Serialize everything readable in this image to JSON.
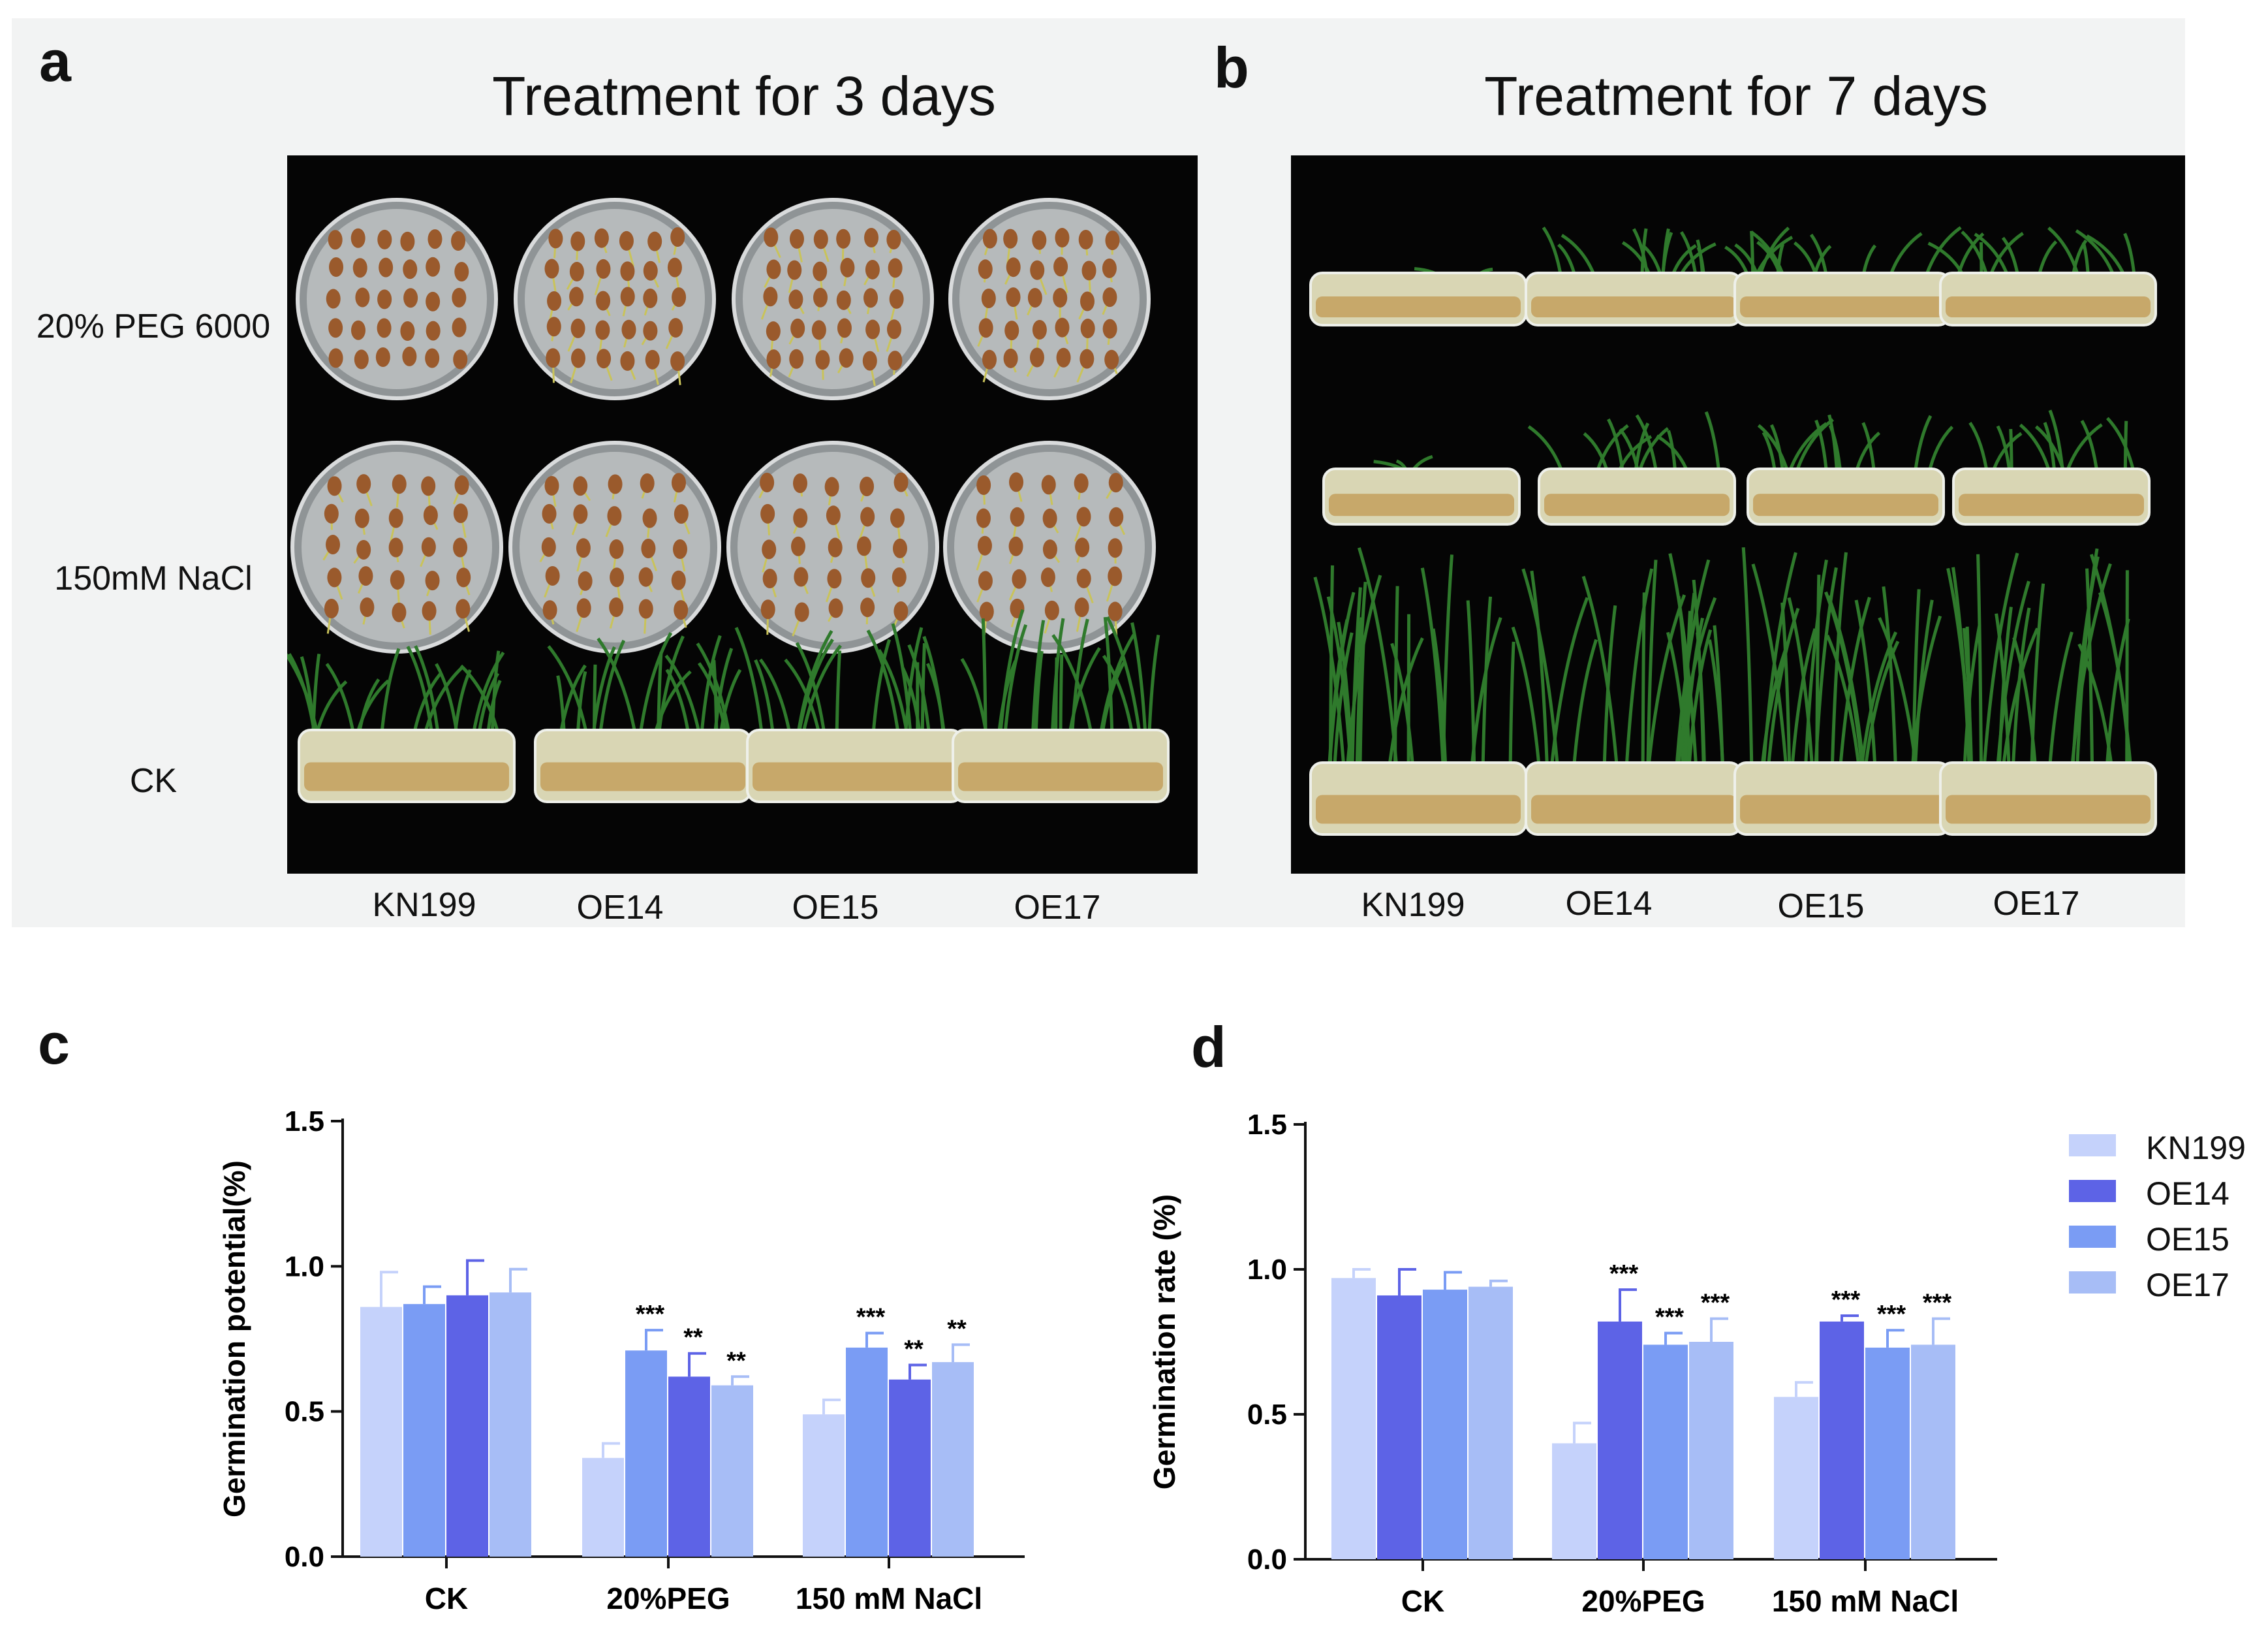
{
  "panel_a": {
    "letter": "a",
    "title": "Treatment for 3 days",
    "row_labels": [
      "20% PEG 6000",
      "150mM NaCl",
      "CK"
    ],
    "col_labels": [
      "KN199",
      "OE14",
      "OE15",
      "OE17"
    ]
  },
  "panel_b": {
    "letter": "b",
    "title": "Treatment for 7 days",
    "col_labels": [
      "KN199",
      "OE14",
      "OE15",
      "OE17"
    ]
  },
  "colors": {
    "KN199": "#c5d2fb",
    "OE14": "#5d63e6",
    "OE15": "#7a9cf4",
    "OE17": "#a7bdf6",
    "axis": "#111111",
    "photo_bg": "#050505",
    "panel_bg": "#f2f3f3"
  },
  "chart_data": [
    {
      "letter": "c",
      "type": "bar",
      "title": "",
      "xlabel": "",
      "ylabel": "Germination potential(%)",
      "ylim": [
        0,
        1.5
      ],
      "yticks": [
        "0.0",
        "0.5",
        "1.0",
        "1.5"
      ],
      "categories": [
        "CK",
        "20%PEG",
        "150 mM NaCl"
      ],
      "series": [
        {
          "name": "KN199",
          "values": [
            0.86,
            0.34,
            0.49
          ],
          "errors": [
            0.12,
            0.05,
            0.05
          ],
          "sig": [
            "",
            "",
            ""
          ]
        },
        {
          "name": "OE15",
          "values": [
            0.87,
            0.71,
            0.72
          ],
          "errors": [
            0.06,
            0.07,
            0.05
          ],
          "sig": [
            "",
            "***",
            "***"
          ]
        },
        {
          "name": "OE14",
          "values": [
            0.9,
            0.62,
            0.61
          ],
          "errors": [
            0.12,
            0.08,
            0.05
          ],
          "sig": [
            "",
            "**",
            "**"
          ]
        },
        {
          "name": "OE17",
          "values": [
            0.91,
            0.59,
            0.67
          ],
          "errors": [
            0.08,
            0.03,
            0.06
          ],
          "sig": [
            "",
            "**",
            "**"
          ]
        }
      ]
    },
    {
      "letter": "d",
      "type": "bar",
      "title": "",
      "xlabel": "",
      "ylabel": "Germination rate (%)",
      "ylim": [
        0,
        1.5
      ],
      "yticks": [
        "0.0",
        "0.5",
        "1.0",
        "1.5"
      ],
      "categories": [
        "CK",
        "20%PEG",
        "150 mM NaCl"
      ],
      "series": [
        {
          "name": "KN199",
          "values": [
            0.97,
            0.4,
            0.56
          ],
          "errors": [
            0.03,
            0.07,
            0.05
          ],
          "sig": [
            "",
            "",
            ""
          ]
        },
        {
          "name": "OE14",
          "values": [
            0.91,
            0.82,
            0.82
          ],
          "errors": [
            0.09,
            0.11,
            0.02
          ],
          "sig": [
            "",
            "***",
            "***"
          ]
        },
        {
          "name": "OE15",
          "values": [
            0.93,
            0.74,
            0.73
          ],
          "errors": [
            0.06,
            0.04,
            0.06
          ],
          "sig": [
            "",
            "***",
            "***"
          ]
        },
        {
          "name": "OE17",
          "values": [
            0.94,
            0.75,
            0.74
          ],
          "errors": [
            0.02,
            0.08,
            0.09
          ],
          "sig": [
            "",
            "***",
            "***"
          ]
        }
      ]
    }
  ],
  "legend": {
    "items": [
      "KN199",
      "OE14",
      "OE15",
      "OE17"
    ],
    "placement": "right"
  }
}
